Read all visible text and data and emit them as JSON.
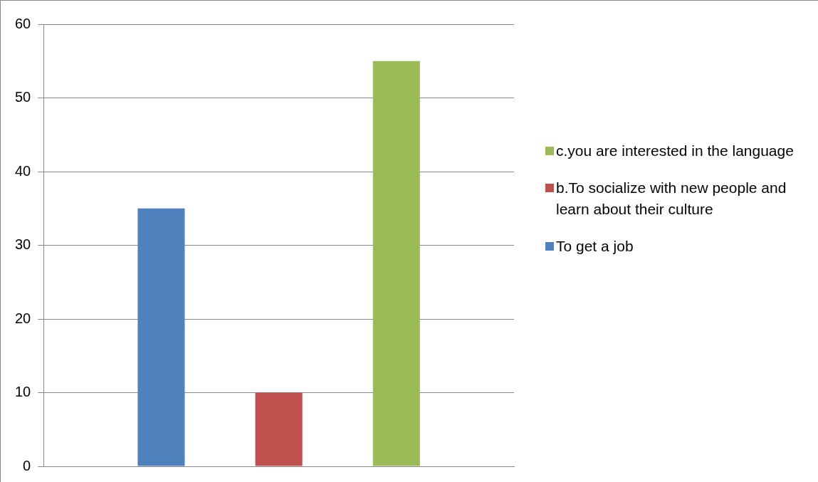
{
  "chart_data": {
    "type": "bar",
    "categories": [
      null
    ],
    "series": [
      {
        "name": "To get a job",
        "color": "#4f81bd",
        "values": [
          35
        ]
      },
      {
        "name": "b.To socialize with new people and learn about their culture",
        "color": "#c0504d",
        "values": [
          10
        ]
      },
      {
        "name": "c.you are interested in the language",
        "color": "#9bbb59",
        "values": [
          55
        ]
      }
    ],
    "ylim": [
      0,
      60
    ],
    "yticks": [
      0,
      10,
      20,
      30,
      40,
      50,
      60
    ],
    "grid": "y",
    "legend": "right",
    "tick_labels": "y"
  }
}
